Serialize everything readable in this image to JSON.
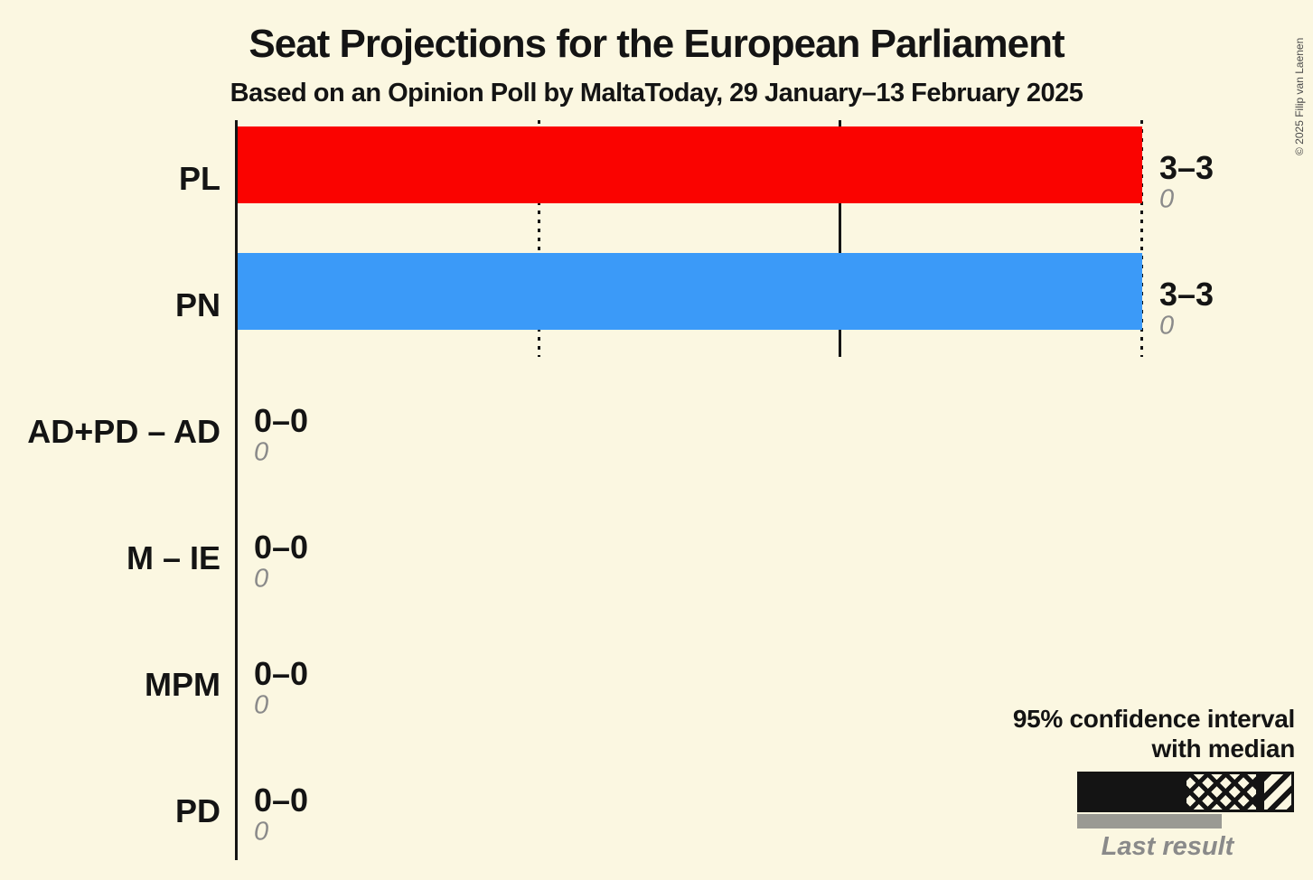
{
  "title": "Seat Projections for the European Parliament",
  "subtitle": "Based on an Opinion Poll by MaltaToday, 29 January–13 February 2025",
  "copyright": "© 2025 Filip van Laenen",
  "legend": {
    "ci_label_line1": "95% confidence interval",
    "ci_label_line2": "with median",
    "last_result_label": "Last result"
  },
  "colors": {
    "background": "#fbf7e1",
    "axis": "#141414",
    "text": "#141414",
    "muted_text": "#8a8a8a",
    "last_result_bar": "#9a9a93",
    "pl_red": "#fa0300",
    "pn_blue": "#3b9af8"
  },
  "chart_data": {
    "type": "bar",
    "orientation": "horizontal",
    "title": "Seat Projections for the European Parliament",
    "subtitle": "Based on an Opinion Poll by MaltaToday, 29 January–13 February 2025",
    "x_axis": {
      "min": 0,
      "max": 3,
      "gridlines": [
        {
          "value": 1,
          "style": "dotted"
        },
        {
          "value": 2,
          "style": "solid"
        },
        {
          "value": 3,
          "style": "dotted"
        }
      ]
    },
    "rows": [
      {
        "party": "PL",
        "ci_low": 3,
        "ci_high": 3,
        "ci_label": "3–3",
        "last_result": "0",
        "bar_color": "#fa0300"
      },
      {
        "party": "PN",
        "ci_low": 3,
        "ci_high": 3,
        "ci_label": "3–3",
        "last_result": "0",
        "bar_color": "#3b9af8"
      },
      {
        "party": "AD+PD – AD",
        "ci_low": 0,
        "ci_high": 0,
        "ci_label": "0–0",
        "last_result": "0",
        "bar_color": null
      },
      {
        "party": "M – IE",
        "ci_low": 0,
        "ci_high": 0,
        "ci_label": "0–0",
        "last_result": "0",
        "bar_color": null
      },
      {
        "party": "MPM",
        "ci_low": 0,
        "ci_high": 0,
        "ci_label": "0–0",
        "last_result": "0",
        "bar_color": null
      },
      {
        "party": "PD",
        "ci_low": 0,
        "ci_high": 0,
        "ci_label": "0–0",
        "last_result": "0",
        "bar_color": null
      }
    ]
  }
}
